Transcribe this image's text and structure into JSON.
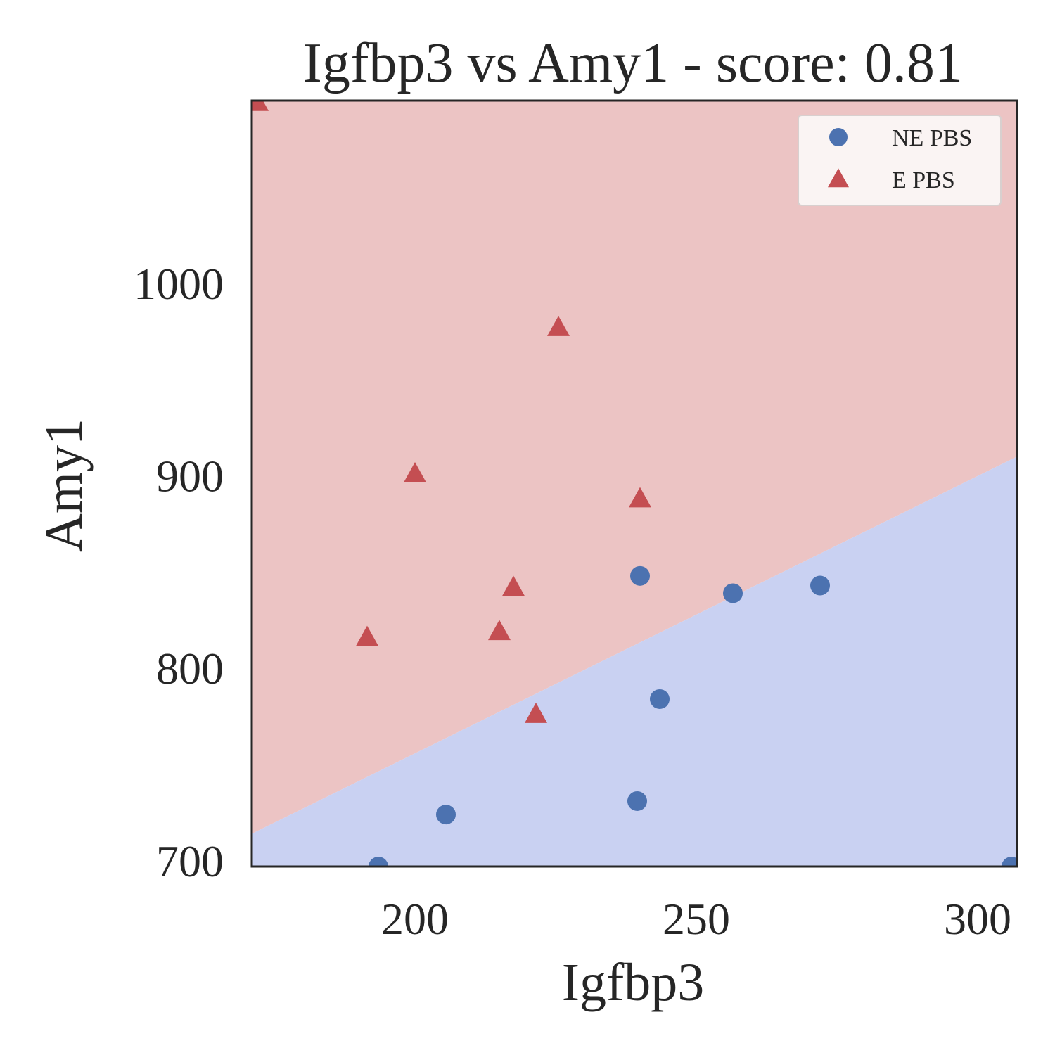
{
  "chart_data": {
    "type": "scatter",
    "title": "Igfbp3 vs Amy1 - score: 0.81",
    "xlabel": "Igfbp3",
    "ylabel": "Amy1",
    "xlim": [
      171,
      307
    ],
    "ylim": [
      697,
      1095
    ],
    "xticks": [
      200,
      250,
      300
    ],
    "yticks": [
      700,
      800,
      900,
      1000
    ],
    "xtick_labels": [
      "200",
      "250",
      "300"
    ],
    "ytick_labels": [
      "700",
      "800",
      "900",
      "1000"
    ],
    "grid": false,
    "legend_position": "top-right",
    "decision_boundary": {
      "points": [
        [
          171,
          714
        ],
        [
          307,
          910
        ]
      ],
      "upper_region_class": "E PBS",
      "lower_region_class": "NE PBS"
    },
    "region_colors": {
      "E PBS": "#ecc4c4",
      "NE PBS": "#c9d1f2"
    },
    "series": [
      {
        "name": "NE PBS",
        "marker": "circle",
        "color": "#4c72b0",
        "points": [
          [
            193.5,
            697
          ],
          [
            205.5,
            724
          ],
          [
            239.5,
            731
          ],
          [
            243.5,
            784
          ],
          [
            240,
            848
          ],
          [
            256.5,
            839
          ],
          [
            272,
            843
          ],
          [
            306,
            697
          ]
        ]
      },
      {
        "name": "E PBS",
        "marker": "triangle",
        "color": "#c44e52",
        "points": [
          [
            172,
            1094
          ],
          [
            225.5,
            977
          ],
          [
            200,
            901
          ],
          [
            240,
            888
          ],
          [
            217.5,
            842
          ],
          [
            215,
            819
          ],
          [
            191.5,
            816
          ],
          [
            221.5,
            776
          ]
        ]
      }
    ]
  }
}
